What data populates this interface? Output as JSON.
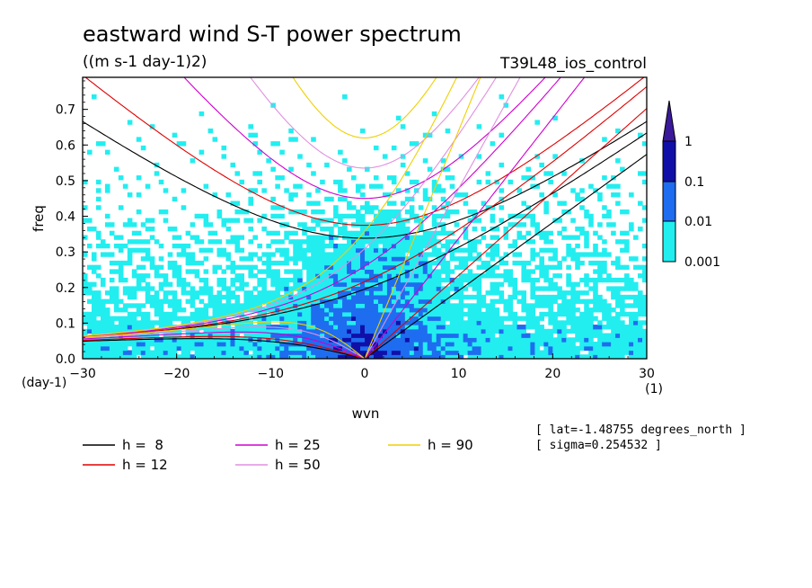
{
  "chart_data": {
    "type": "heatmap",
    "title": "eastward wind S-T power spectrum",
    "subtitle": "((m s-1 day-1)2)",
    "experiment": "T39L48_ios_control",
    "xlabel": "wvn",
    "ylabel": "freq",
    "x_unit": "(1)",
    "y_unit": "(day-1)",
    "xlim": [
      -30,
      30
    ],
    "ylim": [
      0,
      0.79
    ],
    "xticks": [
      -30,
      -20,
      -10,
      0,
      10,
      20,
      30
    ],
    "yticks": [
      0.0,
      0.1,
      0.2,
      0.3,
      0.4,
      0.5,
      0.6,
      0.7
    ],
    "colorbar": {
      "levels": [
        "1",
        "0.1",
        "0.01",
        "0.001"
      ],
      "colors": [
        "#3a1a9a",
        "#1010a8",
        "#1e6cf0",
        "#22eef0"
      ]
    },
    "dispersion_curves": [
      {
        "name": "h =  8",
        "color": "#000000"
      },
      {
        "name": "h = 12",
        "color": "#e00000"
      },
      {
        "name": "h = 25",
        "color": "#d000d0"
      },
      {
        "name": "h = 50",
        "color": "#e090e0"
      },
      {
        "name": "h = 90",
        "color": "#f0d000"
      }
    ],
    "curve_equivalent_depths": [
      8,
      12,
      25,
      50,
      90
    ],
    "annotations": [
      "[ lat=-1.48755 degrees_north ]",
      "[ sigma=0.254532 ]"
    ]
  }
}
